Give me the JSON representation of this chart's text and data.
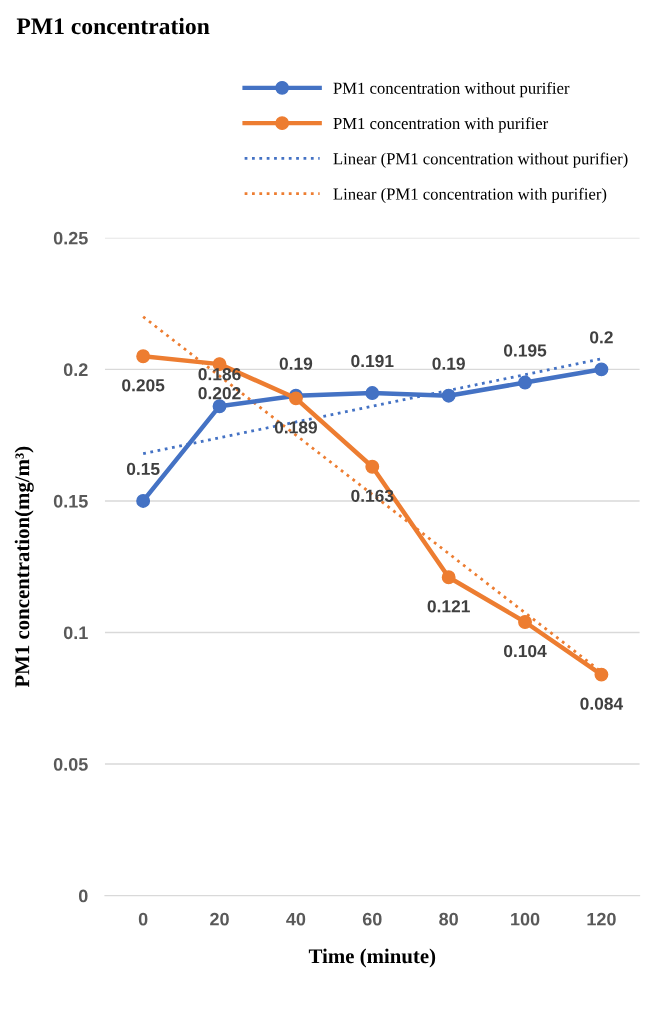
{
  "chart_data": {
    "type": "line",
    "title": "PM1 concentration",
    "xlabel": "Time (minute)",
    "ylabel": "PM1 concentration(mg/m³)",
    "categories": [
      "0",
      "20",
      "40",
      "60",
      "80",
      "100",
      "120"
    ],
    "series": [
      {
        "name": "PM1 concentration without purifier",
        "color": "#4472c4",
        "values": [
          0.15,
          0.186,
          0.19,
          0.191,
          0.19,
          0.195,
          0.2
        ],
        "marker": "circle",
        "line_style": "solid",
        "data_labels": true
      },
      {
        "name": "PM1 concentration with purifier",
        "color": "#ed7d31",
        "values": [
          0.205,
          0.202,
          0.189,
          0.163,
          0.121,
          0.104,
          0.084
        ],
        "marker": "circle",
        "line_style": "solid",
        "data_labels": true
      },
      {
        "name": "Linear (PM1 concentration without purifier)",
        "color": "#4472c4",
        "x": [
          "0",
          "120"
        ],
        "values": [
          0.168,
          0.204
        ],
        "marker": "none",
        "line_style": "dotted"
      },
      {
        "name": "Linear (PM1 concentration with purifier)",
        "color": "#ed7d31",
        "x": [
          "0",
          "120"
        ],
        "values": [
          0.22,
          0.085
        ],
        "marker": "none",
        "line_style": "dotted"
      }
    ],
    "ylim": [
      0,
      0.25
    ],
    "yticks": [
      0,
      0.05,
      0.1,
      0.15,
      0.2,
      0.25
    ],
    "grid": "y",
    "legend": "top"
  }
}
